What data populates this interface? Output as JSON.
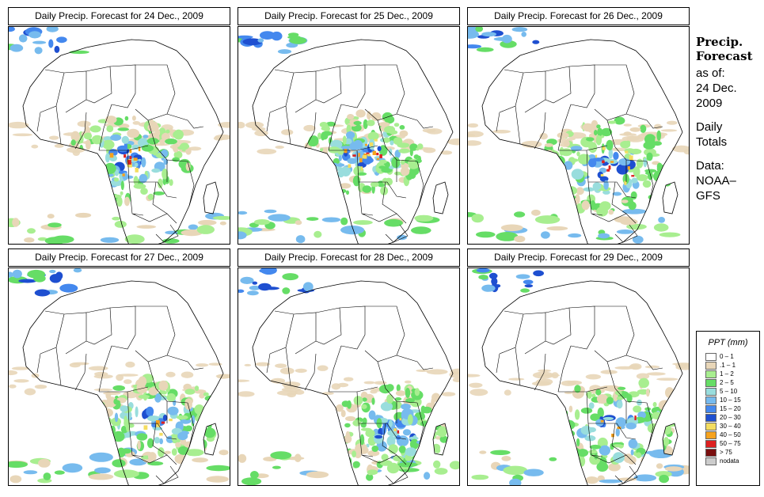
{
  "panels": [
    {
      "title": "Daily Precip. Forecast for  24 Dec., 2009"
    },
    {
      "title": "Daily Precip. Forecast for  25 Dec., 2009"
    },
    {
      "title": "Daily Precip. Forecast for  26 Dec., 2009"
    },
    {
      "title": "Daily Precip. Forecast for  27 Dec., 2009"
    },
    {
      "title": "Daily Precip. Forecast for  28 Dec., 2009"
    },
    {
      "title": "Daily Precip. Forecast for  29 Dec., 2009"
    }
  ],
  "sidebar": {
    "title_line1": "Precip.",
    "title_line2": "Forecast",
    "asof_line1": "as of:",
    "asof_line2": "24 Dec.",
    "asof_line3": "2009",
    "totals_line1": "Daily",
    "totals_line2": "Totals",
    "data_line1": "Data:",
    "data_line2": "NOAA–",
    "data_line3": "GFS"
  },
  "legend": {
    "title": "PPT (mm)",
    "items": [
      {
        "label": "0 – 1",
        "color": "#ffffff"
      },
      {
        "label": ".1 – 1",
        "color": "#e8d6b8"
      },
      {
        "label": "1 – 2",
        "color": "#a8ee90"
      },
      {
        "label": "2 – 5",
        "color": "#66dd66"
      },
      {
        "label": "5 – 10",
        "color": "#99dddd"
      },
      {
        "label": "10 – 15",
        "color": "#77bbee"
      },
      {
        "label": "15 – 20",
        "color": "#4488ee"
      },
      {
        "label": "20 – 30",
        "color": "#1e4fd0"
      },
      {
        "label": "30 – 40",
        "color": "#f4dd60"
      },
      {
        "label": "40 – 50",
        "color": "#f6a21e"
      },
      {
        "label": "50 – 75",
        "color": "#dd2020"
      },
      {
        "label": "> 75",
        "color": "#7a0f0f"
      },
      {
        "label": "nodata",
        "color": "#cccccc"
      }
    ]
  }
}
